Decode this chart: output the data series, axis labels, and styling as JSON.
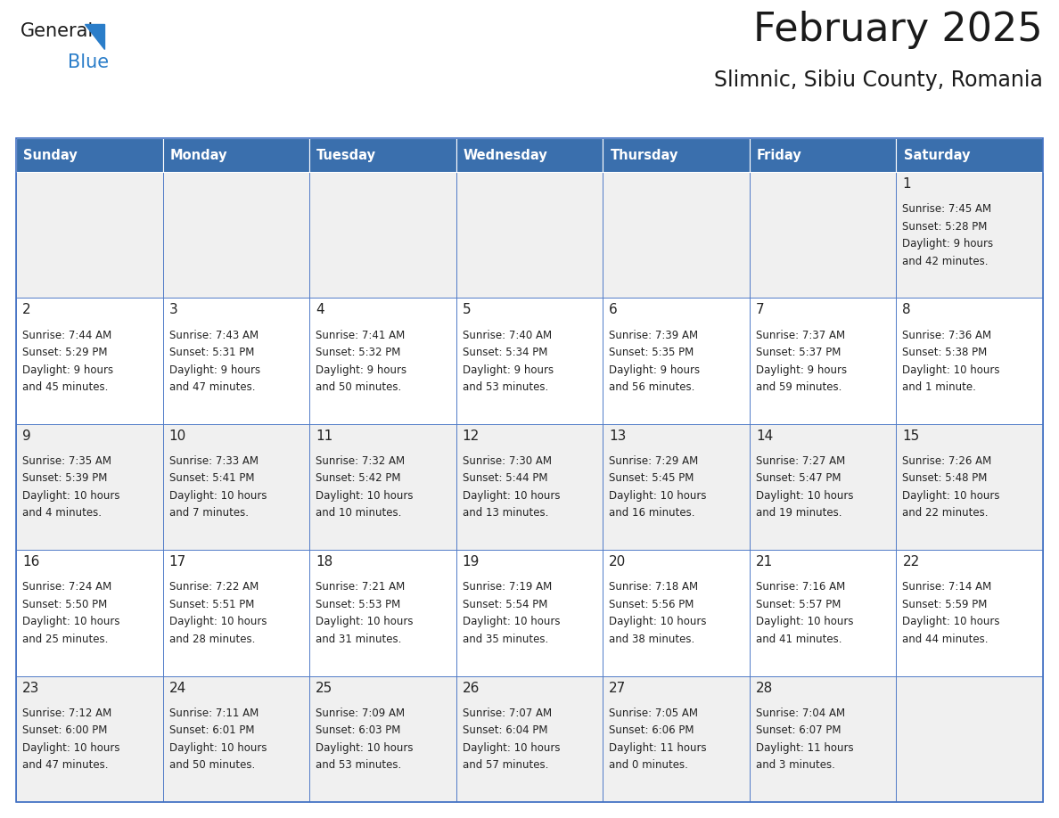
{
  "title": "February 2025",
  "subtitle": "Slimnic, Sibiu County, Romania",
  "header_bg": "#3a6fad",
  "header_text": "#FFFFFF",
  "cell_bg_light": "#F0F0F0",
  "cell_bg_white": "#FFFFFF",
  "cell_border_color": "#4472C4",
  "inner_border_color": "#4472C4",
  "day_text_color": "#222222",
  "info_text_color": "#222222",
  "days_of_week": [
    "Sunday",
    "Monday",
    "Tuesday",
    "Wednesday",
    "Thursday",
    "Friday",
    "Saturday"
  ],
  "weeks": [
    [
      null,
      null,
      null,
      null,
      null,
      null,
      1
    ],
    [
      2,
      3,
      4,
      5,
      6,
      7,
      8
    ],
    [
      9,
      10,
      11,
      12,
      13,
      14,
      15
    ],
    [
      16,
      17,
      18,
      19,
      20,
      21,
      22
    ],
    [
      23,
      24,
      25,
      26,
      27,
      28,
      null
    ]
  ],
  "sun_data": {
    "1": {
      "rise": "7:45 AM",
      "set": "5:28 PM",
      "daylight": "9 hours",
      "daylight2": "and 42 minutes."
    },
    "2": {
      "rise": "7:44 AM",
      "set": "5:29 PM",
      "daylight": "9 hours",
      "daylight2": "and 45 minutes."
    },
    "3": {
      "rise": "7:43 AM",
      "set": "5:31 PM",
      "daylight": "9 hours",
      "daylight2": "and 47 minutes."
    },
    "4": {
      "rise": "7:41 AM",
      "set": "5:32 PM",
      "daylight": "9 hours",
      "daylight2": "and 50 minutes."
    },
    "5": {
      "rise": "7:40 AM",
      "set": "5:34 PM",
      "daylight": "9 hours",
      "daylight2": "and 53 minutes."
    },
    "6": {
      "rise": "7:39 AM",
      "set": "5:35 PM",
      "daylight": "9 hours",
      "daylight2": "and 56 minutes."
    },
    "7": {
      "rise": "7:37 AM",
      "set": "5:37 PM",
      "daylight": "9 hours",
      "daylight2": "and 59 minutes."
    },
    "8": {
      "rise": "7:36 AM",
      "set": "5:38 PM",
      "daylight": "10 hours",
      "daylight2": "and 1 minute."
    },
    "9": {
      "rise": "7:35 AM",
      "set": "5:39 PM",
      "daylight": "10 hours",
      "daylight2": "and 4 minutes."
    },
    "10": {
      "rise": "7:33 AM",
      "set": "5:41 PM",
      "daylight": "10 hours",
      "daylight2": "and 7 minutes."
    },
    "11": {
      "rise": "7:32 AM",
      "set": "5:42 PM",
      "daylight": "10 hours",
      "daylight2": "and 10 minutes."
    },
    "12": {
      "rise": "7:30 AM",
      "set": "5:44 PM",
      "daylight": "10 hours",
      "daylight2": "and 13 minutes."
    },
    "13": {
      "rise": "7:29 AM",
      "set": "5:45 PM",
      "daylight": "10 hours",
      "daylight2": "and 16 minutes."
    },
    "14": {
      "rise": "7:27 AM",
      "set": "5:47 PM",
      "daylight": "10 hours",
      "daylight2": "and 19 minutes."
    },
    "15": {
      "rise": "7:26 AM",
      "set": "5:48 PM",
      "daylight": "10 hours",
      "daylight2": "and 22 minutes."
    },
    "16": {
      "rise": "7:24 AM",
      "set": "5:50 PM",
      "daylight": "10 hours",
      "daylight2": "and 25 minutes."
    },
    "17": {
      "rise": "7:22 AM",
      "set": "5:51 PM",
      "daylight": "10 hours",
      "daylight2": "and 28 minutes."
    },
    "18": {
      "rise": "7:21 AM",
      "set": "5:53 PM",
      "daylight": "10 hours",
      "daylight2": "and 31 minutes."
    },
    "19": {
      "rise": "7:19 AM",
      "set": "5:54 PM",
      "daylight": "10 hours",
      "daylight2": "and 35 minutes."
    },
    "20": {
      "rise": "7:18 AM",
      "set": "5:56 PM",
      "daylight": "10 hours",
      "daylight2": "and 38 minutes."
    },
    "21": {
      "rise": "7:16 AM",
      "set": "5:57 PM",
      "daylight": "10 hours",
      "daylight2": "and 41 minutes."
    },
    "22": {
      "rise": "7:14 AM",
      "set": "5:59 PM",
      "daylight": "10 hours",
      "daylight2": "and 44 minutes."
    },
    "23": {
      "rise": "7:12 AM",
      "set": "6:00 PM",
      "daylight": "10 hours",
      "daylight2": "and 47 minutes."
    },
    "24": {
      "rise": "7:11 AM",
      "set": "6:01 PM",
      "daylight": "10 hours",
      "daylight2": "and 50 minutes."
    },
    "25": {
      "rise": "7:09 AM",
      "set": "6:03 PM",
      "daylight": "10 hours",
      "daylight2": "and 53 minutes."
    },
    "26": {
      "rise": "7:07 AM",
      "set": "6:04 PM",
      "daylight": "10 hours",
      "daylight2": "and 57 minutes."
    },
    "27": {
      "rise": "7:05 AM",
      "set": "6:06 PM",
      "daylight": "11 hours",
      "daylight2": "and 0 minutes."
    },
    "28": {
      "rise": "7:04 AM",
      "set": "6:07 PM",
      "daylight": "11 hours",
      "daylight2": "and 3 minutes."
    }
  },
  "logo_general_color": "#1a1a1a",
  "logo_blue_color": "#2A7DC9",
  "logo_triangle_color": "#2A7DC9"
}
